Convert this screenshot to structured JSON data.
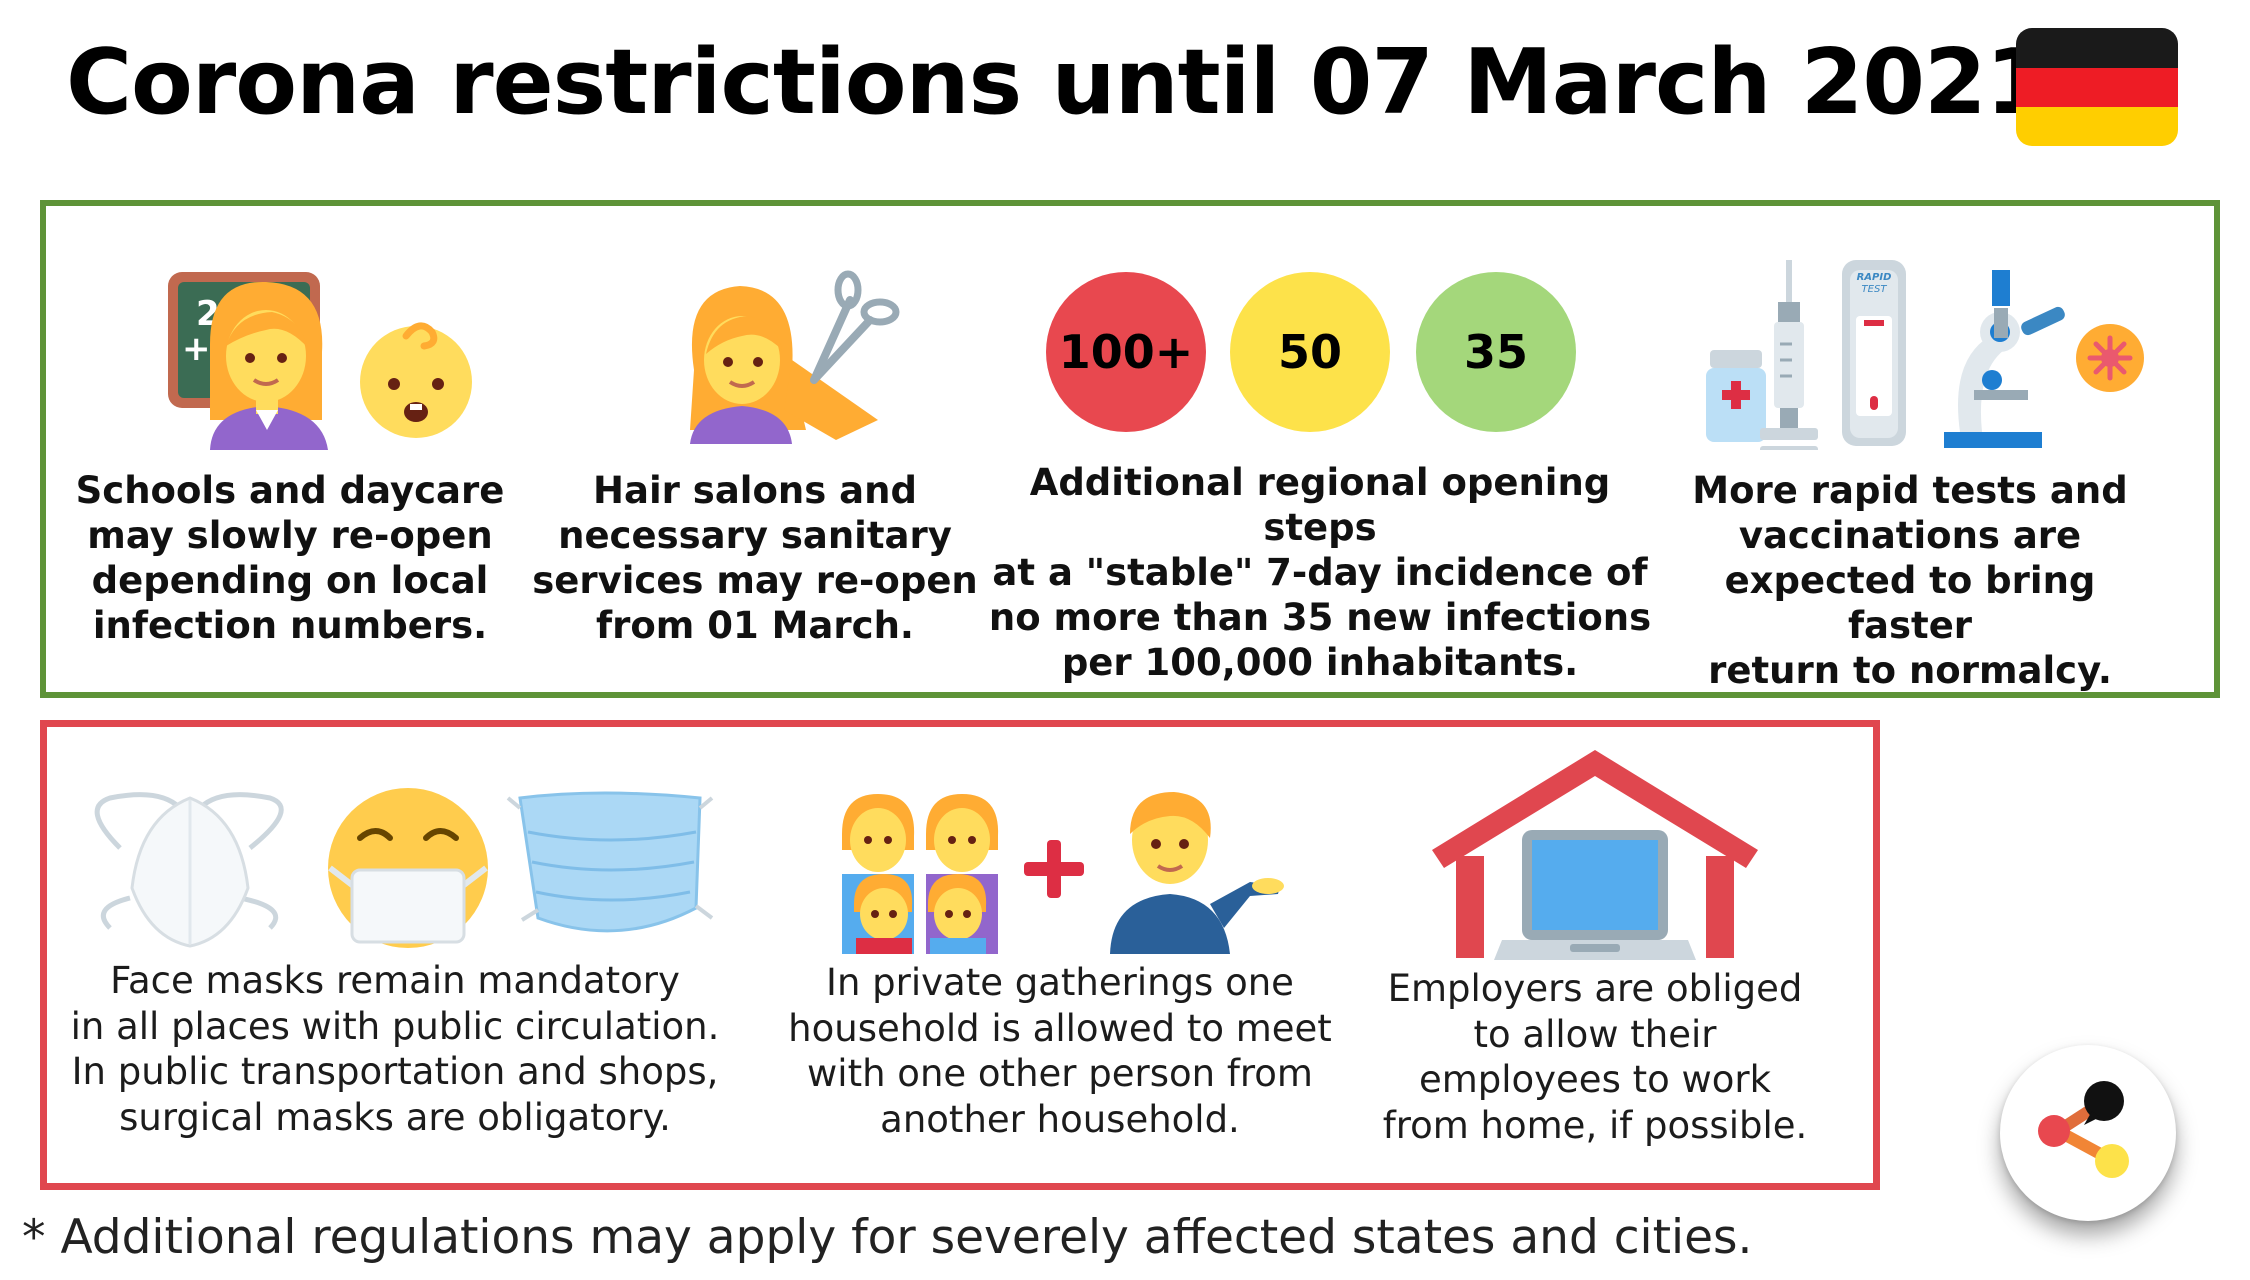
{
  "header": {
    "title": "Corona restrictions until 07 March 2021 in",
    "flag_colors": [
      "#1a1a1a",
      "#ee1c25",
      "#ffce00"
    ]
  },
  "relaxations": {
    "border_color": "#5e9338",
    "items": [
      {
        "icon": "teacher-and-baby-icon",
        "caption": [
          "Schools and daycare",
          "may slowly re-open",
          "depending on local",
          "infection numbers."
        ]
      },
      {
        "icon": "hairdresser-icon",
        "caption": [
          "Hair salons and",
          "necessary sanitary",
          "services may re-open",
          "from 01 March."
        ]
      },
      {
        "icon": "incidence-circles",
        "circles": [
          {
            "label": "100+",
            "color": "#e8484f"
          },
          {
            "label": "50",
            "color": "#fde24a"
          },
          {
            "label": "35",
            "color": "#a4d77b"
          }
        ],
        "caption": [
          "Additional regional opening steps",
          "at a \"stable\" 7-day incidence of",
          "no more than 35 new infections",
          "per 100,000 inhabitants."
        ]
      },
      {
        "icon": "tests-and-vaccine-icon",
        "test_label": "RAPID TEST",
        "caption": [
          "More rapid tests and",
          "vaccinations are",
          "expected to bring faster",
          "return to normalcy."
        ]
      }
    ]
  },
  "restrictions": {
    "border_color": "#e0474f",
    "items": [
      {
        "icon": "face-masks-icon",
        "caption": [
          "Face masks remain mandatory",
          "in all places with public circulation.",
          "In public transportation and shops,",
          "surgical masks are obligatory."
        ]
      },
      {
        "icon": "household-plus-person-icon",
        "caption": [
          "In private gatherings one",
          "household is allowed to meet",
          "with one other person from",
          "another household."
        ]
      },
      {
        "icon": "home-office-icon",
        "caption": [
          "Employers are obliged",
          "to allow their",
          "employees to work",
          "from home, if possible."
        ]
      }
    ]
  },
  "footnote": "* Additional regulations may apply for severely affected states and cities.",
  "logo": {
    "icon": "brand-logo-icon"
  }
}
